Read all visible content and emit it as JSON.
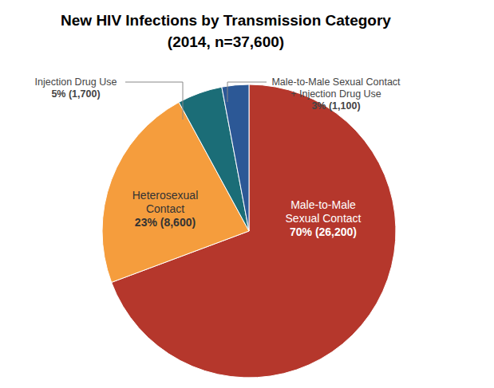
{
  "chart_data": {
    "type": "pie",
    "title": "New HIV Infections by Transmission Category",
    "subtitle": "(2014, n=37,600)",
    "categories": [
      "Male-to-Male Sexual Contact",
      "Heterosexual Contact",
      "Injection Drug Use",
      "Male-to-Male Sexual Contact + Injection Drug Use"
    ],
    "values": [
      70,
      23,
      5,
      3
    ],
    "value_labels": [
      "70% (26,200)",
      "23% (8,600)",
      "5% (1,700)",
      "3% (1,100)"
    ],
    "colors": [
      "#b5372c",
      "#f59d3d",
      "#1b6d77",
      "#2c5896"
    ],
    "data_labels": true
  }
}
